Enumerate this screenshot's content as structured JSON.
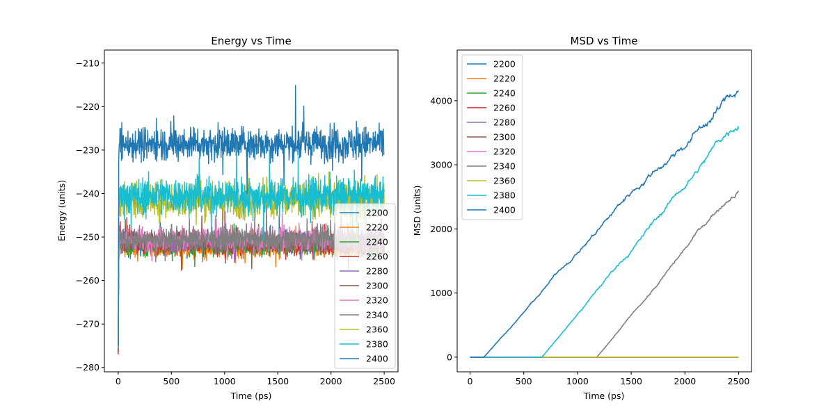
{
  "colors": [
    "#1f77b4",
    "#ff7f0e",
    "#2ca02c",
    "#d62728",
    "#9467bd",
    "#8c564b",
    "#e377c2",
    "#7f7f7f",
    "#bcbd22",
    "#17becf",
    "#1f77b4"
  ],
  "chart_data": [
    {
      "type": "line",
      "title": "Energy vs Time",
      "xlabel": "Time (ps)",
      "ylabel": "Energy (units)",
      "xlim": [
        -130,
        2630
      ],
      "ylim": [
        -281,
        -207
      ],
      "xticks": [
        0,
        500,
        1000,
        1500,
        2000,
        2500
      ],
      "yticks": [
        -280,
        -270,
        -260,
        -250,
        -240,
        -230,
        -220,
        -210
      ],
      "grid": false,
      "legend_position": "lower-right",
      "series": [
        {
          "name": "2200",
          "start_value": -276.5,
          "mean": -252.0,
          "noise": 1.5,
          "start_time": 0,
          "end_time": 2500
        },
        {
          "name": "2220",
          "start_value": -276.5,
          "mean": -252.5,
          "noise": 1.6,
          "start_time": 0,
          "end_time": 2500
        },
        {
          "name": "2240",
          "start_value": -276.0,
          "mean": -252.0,
          "noise": 1.6,
          "start_time": 0,
          "end_time": 2500
        },
        {
          "name": "2260",
          "start_value": -277.0,
          "mean": -251.5,
          "noise": 1.6,
          "start_time": 0,
          "end_time": 2500
        },
        {
          "name": "2280",
          "start_value": -276.0,
          "mean": -251.0,
          "noise": 1.7,
          "start_time": 0,
          "end_time": 2500
        },
        {
          "name": "2300",
          "start_value": -276.0,
          "mean": -251.0,
          "noise": 1.7,
          "start_time": 0,
          "end_time": 2500
        },
        {
          "name": "2320",
          "start_value": -275.5,
          "mean": -250.5,
          "noise": 1.9,
          "start_time": 0,
          "end_time": 2500
        },
        {
          "name": "2340",
          "start_value": -275.5,
          "mean": -250.5,
          "noise": 1.9,
          "start_time": 0,
          "end_time": 2500
        },
        {
          "name": "2360",
          "start_value": -275.5,
          "mean": -241.5,
          "noise": 3.0,
          "start_time": 0,
          "end_time": 2500
        },
        {
          "name": "2380",
          "start_value": -275.5,
          "mean": -240.5,
          "noise": 3.0,
          "start_time": 0,
          "end_time": 2500
        },
        {
          "name": "2400",
          "start_value": -275.0,
          "mean": -228.5,
          "noise": 2.8,
          "start_time": 0,
          "end_time": 2500
        }
      ]
    },
    {
      "type": "line",
      "title": "MSD  vs Time",
      "xlabel": "Time (ps)",
      "ylabel": "MSD (units)",
      "xlim": [
        -120,
        2620
      ],
      "ylim": [
        -230,
        4790
      ],
      "xticks": [
        0,
        500,
        1000,
        1500,
        2000,
        2500
      ],
      "yticks": [
        0,
        1000,
        2000,
        3000,
        4000
      ],
      "grid": false,
      "legend_position": "upper-left",
      "series": [
        {
          "name": "2200",
          "onset": null,
          "end_value": 0
        },
        {
          "name": "2220",
          "onset": null,
          "end_value": 0
        },
        {
          "name": "2240",
          "onset": null,
          "end_value": 0
        },
        {
          "name": "2260",
          "onset": null,
          "end_value": 0
        },
        {
          "name": "2280",
          "onset": null,
          "end_value": 0
        },
        {
          "name": "2300",
          "onset": null,
          "end_value": 0
        },
        {
          "name": "2320",
          "onset": null,
          "end_value": 0
        },
        {
          "name": "2340",
          "onset": 1180,
          "end_value": 2570
        },
        {
          "name": "2360",
          "onset": null,
          "end_value": 0
        },
        {
          "name": "2380",
          "onset": 670,
          "end_value": 3690
        },
        {
          "name": "2400",
          "onset": 130,
          "end_value": 4550
        }
      ]
    }
  ]
}
